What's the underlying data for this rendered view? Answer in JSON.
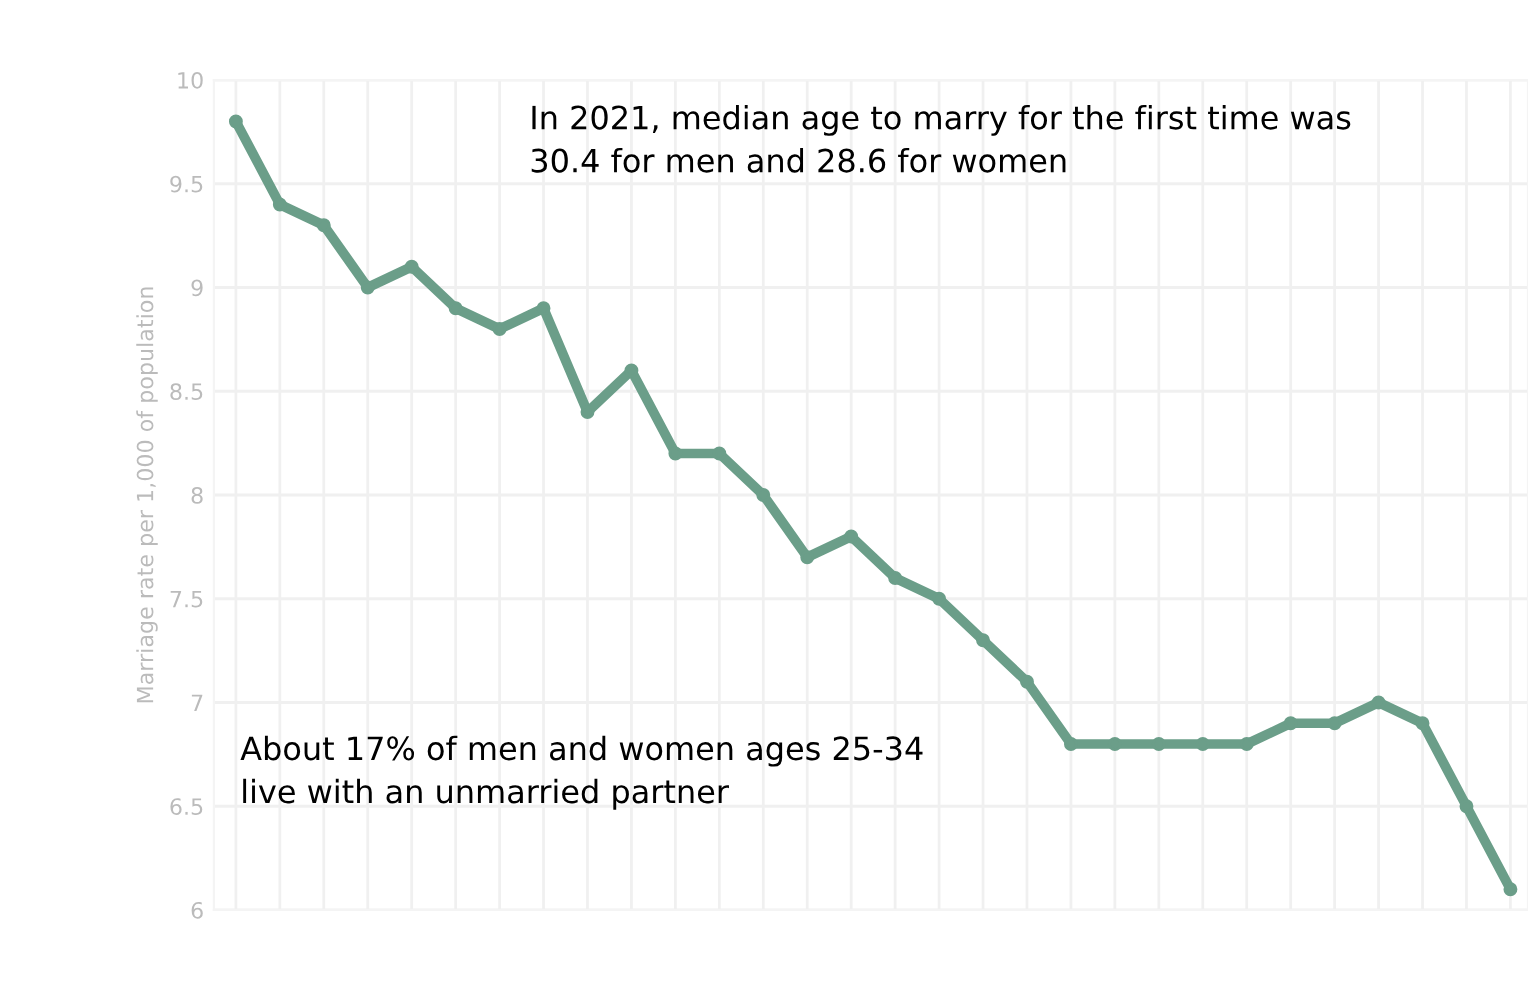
{
  "chart_data": {
    "type": "line",
    "ylabel": "Marriage rate per 1,000 of population",
    "categories": [
      null,
      null,
      null,
      null,
      null,
      null,
      null,
      null,
      null,
      null,
      null,
      null,
      null,
      null,
      null,
      null,
      null,
      null,
      null,
      null,
      null,
      null,
      null,
      null,
      null,
      null,
      null,
      null,
      null,
      null
    ],
    "series": [
      {
        "color": "#6b9e89",
        "values": [
          9.8,
          9.4,
          9.3,
          9.0,
          9.1,
          8.9,
          8.8,
          8.9,
          8.4,
          8.6,
          8.2,
          8.2,
          8.0,
          7.7,
          7.8,
          7.6,
          7.5,
          7.3,
          7.1,
          6.8,
          6.8,
          6.8,
          6.8,
          6.8,
          6.9,
          6.9,
          7.0,
          6.9,
          6.5,
          6.1
        ]
      }
    ],
    "ylim": [
      6,
      10
    ],
    "yticks": [
      6,
      6.5,
      7,
      7.5,
      8,
      8.5,
      9,
      9.5,
      10
    ],
    "grid": true,
    "marker": "circle",
    "line_style": "solid",
    "annotations": [
      "In 2021, median age to marry for the first time was\n30.4 for men and 28.6 for women",
      "About 17% of men and women ages 25-34\nlive with an unmarried partner"
    ]
  }
}
